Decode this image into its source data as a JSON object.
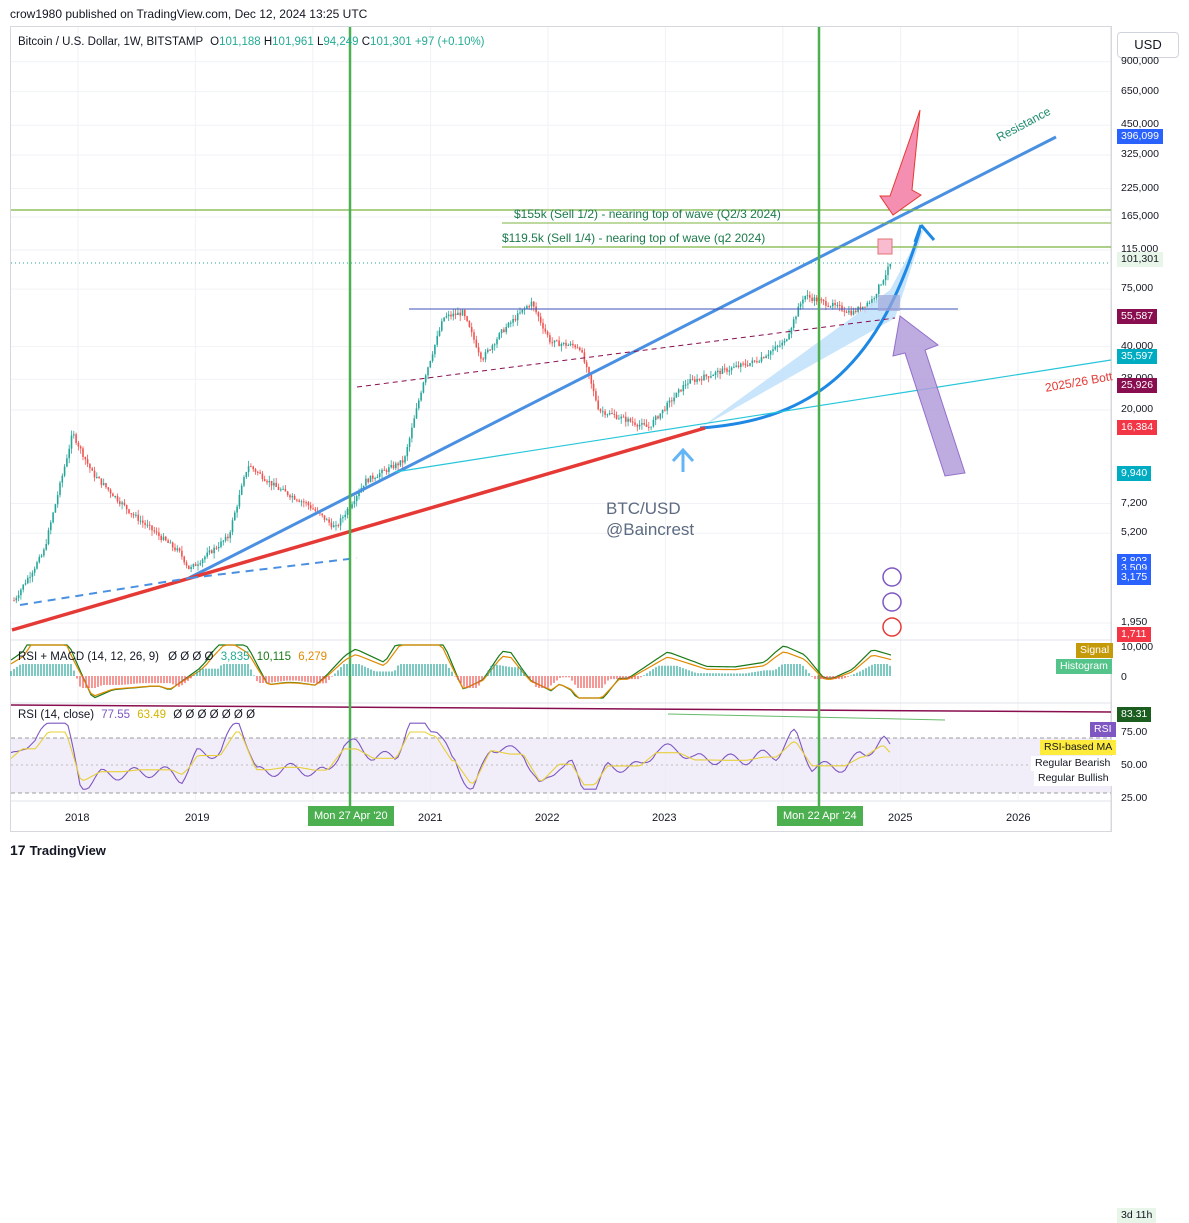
{
  "header": {
    "published": "crow1980 published on TradingView.com, Dec 12, 2024 13:25 UTC"
  },
  "symbol": {
    "name": "Bitcoin / U.S. Dollar, 1W, BITSTAMP",
    "o_label": "O",
    "o": "101,188",
    "h_label": "H",
    "h": "101,961",
    "l_label": "L",
    "l": "94,249",
    "c_label": "C",
    "c": "101,301",
    "change": "+97 (+0.10%)"
  },
  "currency_button": "USD",
  "price_ticks": [
    "900,000",
    "650,000",
    "450,000",
    "325,000",
    "225,000",
    "165,000",
    "115,000",
    "75,000",
    "40,000",
    "28,000",
    "20,000",
    "7,200",
    "5,200",
    "1,950"
  ],
  "price_tags": [
    {
      "text": "396,099",
      "color": "#2962ff"
    },
    {
      "text": "101,301",
      "color": "#e8f5e9"
    },
    {
      "text": "3d 11h",
      "color": "#e8f5e9"
    },
    {
      "text": "55,587",
      "color": "#880e4f"
    },
    {
      "text": "35,597",
      "color": "#00acc1"
    },
    {
      "text": "25,926",
      "color": "#880e4f"
    },
    {
      "text": "16,384",
      "color": "#f23645"
    },
    {
      "text": "9,940",
      "color": "#00acc1"
    },
    {
      "text": "3,803",
      "color": "#2962ff"
    },
    {
      "text": "3,509",
      "color": "#2962ff"
    },
    {
      "text": "3,175",
      "color": "#2962ff"
    },
    {
      "text": "1,711",
      "color": "#f23645"
    }
  ],
  "annotations": {
    "resistance": "Resistance",
    "sell_half": "$155k (Sell 1/2) - nearing top of wave (Q2/3 2024)",
    "sell_quarter": "$119.5k (Sell 1/4) - nearing top of wave (q2 2024)",
    "bottom_2025": "2025/26 Bott",
    "watermark_1": "BTC/USD",
    "watermark_2": "@Baincrest"
  },
  "macd_panel": {
    "title": "RSI + MACD (14, 12, 26, 9)",
    "zeros": "Ø Ø Ø Ø",
    "v1": "3,835",
    "v2": "10,115",
    "v3": "6,279",
    "ticks": [
      "10,000",
      "0"
    ],
    "signal": "Signal",
    "histogram": "Histogram"
  },
  "rsi_panel": {
    "title": "RSI (14, close)",
    "v1": "77.55",
    "v2": "63.49",
    "zeros": "Ø Ø Ø Ø Ø Ø Ø",
    "ticks": [
      "75.00",
      "50.00",
      "25.00"
    ],
    "tag_8331": "83.31",
    "rsi": "RSI",
    "rsi_ma": "RSI-based MA",
    "reg_bearish": "Regular Bearish",
    "reg_bullish": "Regular Bullish"
  },
  "x_axis": {
    "years": [
      "2018",
      "2019",
      "2021",
      "2022",
      "2023",
      "2025",
      "2026"
    ],
    "date_1": "Mon 27 Apr '20",
    "date_2": "Mon 22 Apr '24"
  },
  "footer": "TradingView",
  "colors": {
    "up": "#26a69a",
    "down": "#ef5350",
    "grid": "#eef0f3",
    "green_vline": "#4caf50"
  },
  "chart_data": {
    "type": "candlestick",
    "title": "Bitcoin / U.S. Dollar, 1W, BITSTAMP",
    "scale": "log",
    "ylim": [
      1000,
      1500000
    ],
    "x": [
      "2017-06",
      "2017-09",
      "2017-12",
      "2018-02",
      "2018-06",
      "2018-11",
      "2018-12",
      "2019-04",
      "2019-06",
      "2019-09",
      "2019-12",
      "2020-03",
      "2020-06",
      "2020-10",
      "2020-12",
      "2021-02",
      "2021-04",
      "2021-06",
      "2021-08",
      "2021-11",
      "2022-01",
      "2022-04",
      "2022-06",
      "2022-11",
      "2023-03",
      "2023-06",
      "2023-10",
      "2024-01",
      "2024-03",
      "2024-08",
      "2024-10",
      "2024-12"
    ],
    "close": [
      2500,
      4200,
      15500,
      10000,
      6500,
      4200,
      3500,
      5000,
      11000,
      8500,
      7200,
      5500,
      9200,
      11500,
      28000,
      55000,
      58000,
      35000,
      47000,
      65000,
      42000,
      40000,
      20000,
      16500,
      27000,
      30000,
      34000,
      42000,
      70000,
      58000,
      67000,
      101301
    ],
    "levels": [
      {
        "label": "$155k (Sell 1/2) - nearing top of wave (Q2/3 2024)",
        "value": 155000
      },
      {
        "label": "$119.5k (Sell 1/4) - nearing top of wave (q2 2024)",
        "value": 119500
      }
    ],
    "ylabel": "USD"
  }
}
